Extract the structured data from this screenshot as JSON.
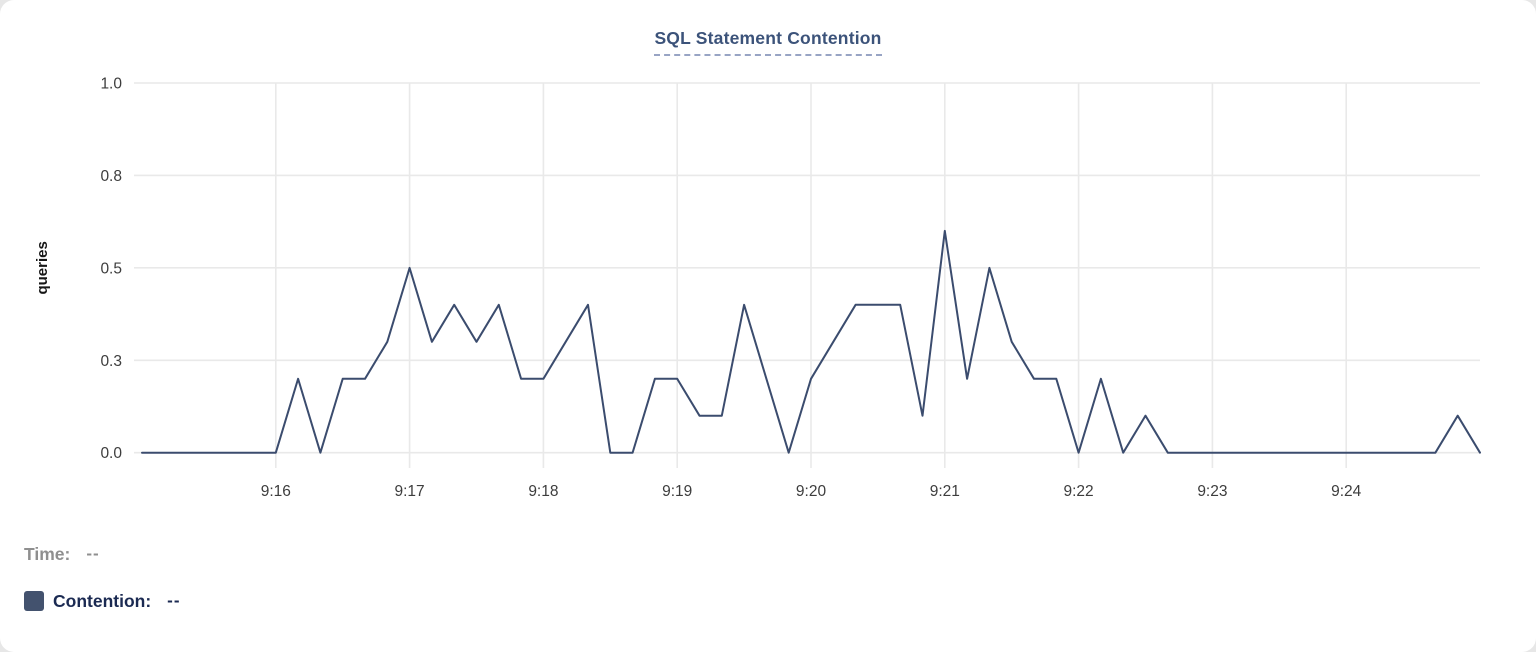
{
  "page": {
    "background_color": "#e7e7e7",
    "card_color": "#ffffff"
  },
  "chart_data": {
    "type": "line",
    "title": "SQL Statement Contention",
    "xlabel": "",
    "ylabel": "queries",
    "ylim": [
      0,
      1
    ],
    "grid": true,
    "legend_position": "bottom",
    "title_color": "#3c537a",
    "title_underline_color": "#98a4c4",
    "grid_color": "#e9e9e9",
    "tick_text_color": "#3d3d3d",
    "ylabel_color": "#161616",
    "y_ticks": [
      {
        "value": 0,
        "label": "0.0"
      },
      {
        "value": 0.25,
        "label": "0.3"
      },
      {
        "value": 0.5,
        "label": "0.5"
      },
      {
        "value": 0.75,
        "label": "0.8"
      },
      {
        "value": 1.0,
        "label": "1.0"
      }
    ],
    "x_tick_labels": [
      "9:16",
      "9:17",
      "9:18",
      "9:19",
      "9:20",
      "9:21",
      "9:22",
      "9:23",
      "9:24"
    ],
    "x": [
      "9:15:00",
      "9:15:10",
      "9:15:20",
      "9:15:30",
      "9:15:40",
      "9:15:50",
      "9:16:00",
      "9:16:10",
      "9:16:20",
      "9:16:30",
      "9:16:40",
      "9:16:50",
      "9:17:00",
      "9:17:10",
      "9:17:20",
      "9:17:30",
      "9:17:40",
      "9:17:50",
      "9:18:00",
      "9:18:10",
      "9:18:20",
      "9:18:30",
      "9:18:40",
      "9:18:50",
      "9:19:00",
      "9:19:10",
      "9:19:20",
      "9:19:30",
      "9:19:40",
      "9:19:50",
      "9:20:00",
      "9:20:10",
      "9:20:20",
      "9:20:30",
      "9:20:40",
      "9:20:50",
      "9:21:00",
      "9:21:10",
      "9:21:20",
      "9:21:30",
      "9:21:40",
      "9:21:50",
      "9:22:00",
      "9:22:10",
      "9:22:20",
      "9:22:30",
      "9:22:40",
      "9:22:50",
      "9:23:00",
      "9:23:10",
      "9:23:20",
      "9:23:30",
      "9:23:40",
      "9:23:50",
      "9:24:00",
      "9:24:10",
      "9:24:20",
      "9:24:30",
      "9:24:40",
      "9:24:50",
      "9:25:00"
    ],
    "series": [
      {
        "name": "Contention",
        "color": "#3b4c6e",
        "values": [
          0,
          0,
          0,
          0,
          0,
          0,
          0,
          0.2,
          0,
          0.2,
          0.2,
          0.3,
          0.5,
          0.3,
          0.4,
          0.3,
          0.4,
          0.2,
          0.2,
          0.3,
          0.4,
          0,
          0,
          0.2,
          0.2,
          0.1,
          0.1,
          0.4,
          0.2,
          0,
          0.2,
          0.3,
          0.4,
          0.4,
          0.4,
          0.1,
          0.6,
          0.2,
          0.5,
          0.3,
          0.2,
          0.2,
          0,
          0.2,
          0,
          0.1,
          0,
          0,
          0,
          0,
          0,
          0,
          0,
          0,
          0,
          0,
          0,
          0,
          0,
          0.1,
          0
        ]
      }
    ]
  },
  "legend": {
    "time_label": "Time:",
    "time_value": "--",
    "time_color": "#8f8f8f",
    "contention_label": "Contention:",
    "contention_value": "--",
    "contention_color": "#1b2a52",
    "swatch_color": "#43526e"
  }
}
